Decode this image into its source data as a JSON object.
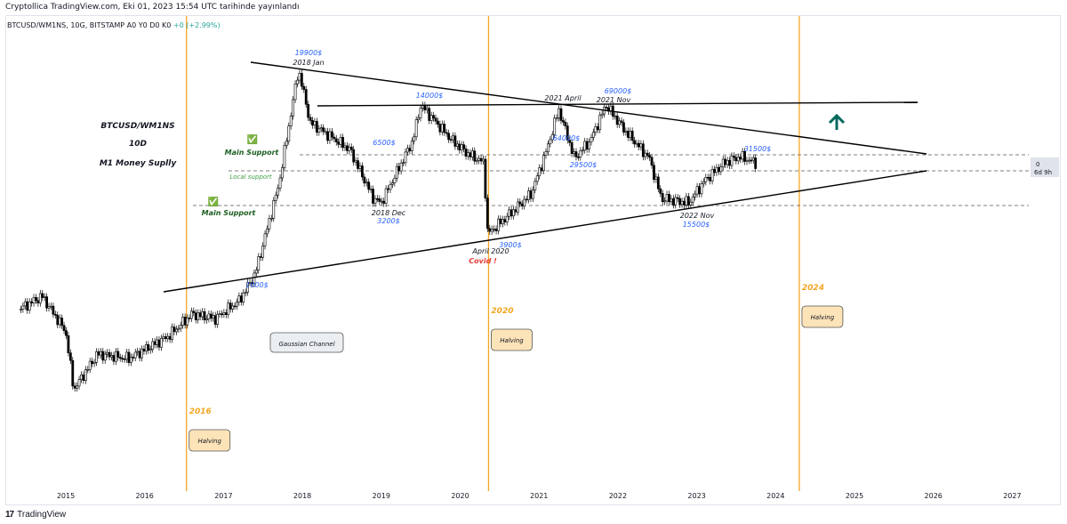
{
  "header": {
    "author_line": "Cryptollica TradingView.com, Eki 01, 2023 15:54 UTC tarihinde yayınlandı"
  },
  "legend": {
    "symbol_line": "BTCUSD/WM1NS, 10G, BITSTAMP  A0  Y0  D0  K0",
    "change": "+0 (+2.99%)"
  },
  "footer": {
    "brand": "TradingView",
    "logo": "17"
  },
  "chart_data": {
    "type": "candlestick",
    "title_lines": [
      "BTCUSD/WM1NS",
      "10D",
      "M1 Money Suplly"
    ],
    "x_axis": {
      "ticks": [
        "2015",
        "2016",
        "2017",
        "2018",
        "2019",
        "2020",
        "2021",
        "2022",
        "2023",
        "2024",
        "2025",
        "2026",
        "2027"
      ]
    },
    "price_scale": {
      "value": "0",
      "countdown": "6d 9h"
    },
    "grid": false,
    "halving_markers": [
      {
        "date": "2016.53",
        "year_label": "2016",
        "label": "Halving"
      },
      {
        "date": "2020.36",
        "year_label": "2020",
        "label": "Halving"
      },
      {
        "date": "2024.30",
        "year_label": "2024",
        "label": "Halving"
      }
    ],
    "price_labels": [
      {
        "date": "2018.0",
        "price_label": "19900$",
        "caption": "2018 Jan"
      },
      {
        "date": "2018.5",
        "price_label": "6500$"
      },
      {
        "date": "2019.5",
        "price_label": "14000$"
      },
      {
        "date": "2018.95",
        "price_label": "3200$",
        "caption": "2018 Dec"
      },
      {
        "date": "2020.2",
        "price_label": "3900$",
        "caption": "April 2020"
      },
      {
        "date": "2021.25",
        "price_label": "64000$",
        "caption": "2021 April"
      },
      {
        "date": "2021.9",
        "price_label": "69000$",
        "caption": "2021 Nov"
      },
      {
        "date": "2021.45",
        "price_label": "29500$"
      },
      {
        "date": "2022.9",
        "price_label": "15500$",
        "caption": "2022 Nov"
      },
      {
        "date": "2023.55",
        "price_label": "31500$"
      },
      {
        "date": "2017.3",
        "price_label": "1000$"
      }
    ],
    "annotations": [
      {
        "text": "Covid !",
        "color": "#e53935"
      },
      {
        "text": "Main Support",
        "color": "#1b5e20",
        "check": "✅"
      },
      {
        "text": "Local support",
        "color": "#43a047"
      },
      {
        "text": "Main Support",
        "color": "#1b5e20",
        "check": "✅"
      },
      {
        "text": "Gaussian Channel",
        "color": "#131722"
      }
    ],
    "arrow": {
      "direction": "up",
      "color": "#00695c"
    },
    "colors": {
      "up": "#ffffff",
      "down": "#000000",
      "halving_line": "#f5a623",
      "date_label": "#f5a623",
      "price_label": "#2962ff",
      "halving_box": "#fde3b8"
    }
  }
}
